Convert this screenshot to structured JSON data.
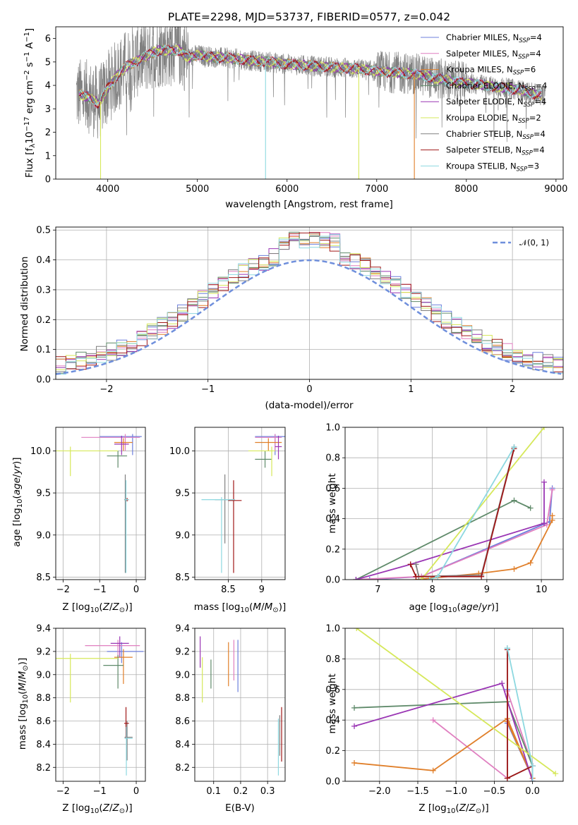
{
  "title": "PLATE=2298, MJD=53737, FIBERID=0577, z=0.042",
  "colors": {
    "chabrier_miles": "#6c7fdc",
    "salpeter_miles": "#e07fc0",
    "kroupa_miles": "#e07f2a",
    "chabrier_elodie": "#5f8a6a",
    "salpeter_elodie": "#9a36b4",
    "kroupa_elodie": "#d6e85a",
    "chabrier_stelib": "#808080",
    "salpeter_stelib": "#a01818",
    "kroupa_stelib": "#8dd8e0",
    "normal": "#6f8fdc"
  },
  "legend_top": [
    {
      "key": "chabrier_miles",
      "name": "Chabrier MILES, ",
      "n": "4"
    },
    {
      "key": "salpeter_miles",
      "name": "Salpeter MILES, ",
      "n": "4"
    },
    {
      "key": "kroupa_miles",
      "name": "Kroupa MILES, ",
      "n": "6"
    },
    {
      "key": "chabrier_elodie",
      "name": "Chabrier ELODIE, ",
      "n": "4"
    },
    {
      "key": "salpeter_elodie",
      "name": "Salpeter ELODIE, ",
      "n": "4"
    },
    {
      "key": "kroupa_elodie",
      "name": "Kroupa ELODIE, ",
      "n": "2"
    },
    {
      "key": "chabrier_stelib",
      "name": "Chabrier STELIB, ",
      "n": "4"
    },
    {
      "key": "salpeter_stelib",
      "name": "Salpeter STELIB, ",
      "n": "4"
    },
    {
      "key": "kroupa_stelib",
      "name": "Kroupa STELIB, ",
      "n": "3"
    }
  ],
  "chart_data": [
    {
      "id": "spectrum",
      "type": "line",
      "title": "PLATE=2298, MJD=53737, FIBERID=0577, z=0.042",
      "xlabel": "wavelength [Angstrom, rest frame]",
      "ylabel": "Flux [f_λ 10^-17 erg cm^-2 s^-1 A^-1]",
      "xlim": [
        3420,
        9080
      ],
      "ylim": [
        0,
        6.5
      ],
      "xticks": [
        4000,
        5000,
        6000,
        7000,
        8000,
        9000
      ],
      "yticks": [
        0,
        1,
        2,
        3,
        4,
        5,
        6
      ],
      "continuum": {
        "x": [
          3680,
          3800,
          3900,
          4000,
          4100,
          4200,
          4300,
          4400,
          4500,
          4600,
          4700,
          4800,
          4900,
          5000,
          5200,
          5400,
          5600,
          5800,
          6000,
          6200,
          6400,
          6600,
          6800,
          7000,
          7200,
          7400,
          7600,
          7800,
          8000,
          8200,
          8400,
          8600,
          8800
        ],
        "y": [
          3.6,
          3.5,
          3.2,
          3.9,
          4.4,
          4.8,
          5.0,
          5.2,
          5.4,
          5.5,
          5.5,
          5.5,
          5.2,
          5.3,
          5.2,
          5.15,
          5.05,
          5.0,
          4.9,
          4.85,
          4.8,
          4.75,
          4.7,
          4.6,
          4.55,
          4.5,
          4.35,
          4.2,
          4.1,
          4.0,
          3.9,
          3.8,
          3.6
        ]
      },
      "data_range": [
        3650,
        8880
      ]
    },
    {
      "id": "residuals",
      "type": "line",
      "xlabel": "(data-model)/error",
      "ylabel": "Normed distribution",
      "xlim": [
        -2.5,
        2.5
      ],
      "ylim": [
        0,
        0.51
      ],
      "xticks": [
        -2,
        -1,
        0,
        1,
        2
      ],
      "yticks": [
        0,
        0.1,
        0.2,
        0.3,
        0.4,
        0.5
      ],
      "normal_label": "𝒩(0, 1)",
      "bin_width": 0.1,
      "bin_start": -2.5
    },
    {
      "id": "age_vs_Z",
      "type": "scatter",
      "xlabel": "Z [log10(Z/Z⊙)]",
      "ylabel": "age  [log10(age/yr)]",
      "xlim": [
        -2.2,
        0.25
      ],
      "ylim": [
        8.47,
        10.28
      ],
      "xticks": [
        -2,
        -1,
        0
      ],
      "yticks": [
        8.5,
        9.0,
        9.5,
        10.0
      ],
      "points": [
        {
          "key": "chabrier_miles",
          "x": -0.1,
          "y": 10.17,
          "xe": [
            -1.0,
            0.15
          ],
          "ye": [
            9.95,
            10.2
          ]
        },
        {
          "key": "salpeter_miles",
          "x": -0.3,
          "y": 10.16,
          "xe": [
            -1.5,
            0.1
          ],
          "ye": [
            10.0,
            10.2
          ]
        },
        {
          "key": "kroupa_miles",
          "x": -0.35,
          "y": 10.1,
          "xe": [
            -0.6,
            -0.1
          ],
          "ye": [
            10.0,
            10.15
          ]
        },
        {
          "key": "chabrier_elodie",
          "x": -0.5,
          "y": 9.94,
          "xe": [
            -0.8,
            -0.25
          ],
          "ye": [
            9.8,
            10.0
          ]
        },
        {
          "key": "salpeter_elodie",
          "x": -0.4,
          "y": 10.08,
          "xe": [
            -0.6,
            -0.2
          ],
          "ye": [
            9.95,
            10.18
          ]
        },
        {
          "key": "kroupa_elodie",
          "x": -1.8,
          "y": 10.0,
          "xe": [
            -2.2,
            -0.5
          ],
          "ye": [
            9.7,
            10.05
          ]
        },
        {
          "key": "chabrier_stelib",
          "x": -0.3,
          "y": 9.42,
          "xe": [
            -0.33,
            -0.25
          ],
          "ye": [
            8.55,
            9.72
          ]
        },
        {
          "key": "salpeter_stelib",
          "x": -0.25,
          "y": 9.42,
          "xe": [
            -0.3,
            -0.2
          ],
          "ye": [
            9.4,
            9.44
          ]
        },
        {
          "key": "kroupa_stelib",
          "x": -0.28,
          "y": 9.42,
          "xe": [
            -0.32,
            -0.2
          ],
          "ye": [
            8.55,
            9.65
          ]
        }
      ]
    },
    {
      "id": "age_vs_mass",
      "type": "scatter",
      "xlabel": "mass [log10(M/M⊙)]",
      "ylabel": "",
      "xlim": [
        8.0,
        9.35
      ],
      "ylim": [
        8.47,
        10.28
      ],
      "xticks": [
        8.5,
        9.0
      ],
      "yticks": [
        8.5,
        9.0,
        9.5,
        10.0
      ],
      "points": [
        {
          "key": "chabrier_miles",
          "x": 9.2,
          "y": 10.17,
          "xe": [
            8.9,
            9.35
          ],
          "ye": [
            9.95,
            10.2
          ]
        },
        {
          "key": "salpeter_miles",
          "x": 9.2,
          "y": 10.16,
          "xe": [
            8.9,
            9.3
          ],
          "ye": [
            10.0,
            10.2
          ]
        },
        {
          "key": "kroupa_miles",
          "x": 9.1,
          "y": 10.1,
          "xe": [
            8.9,
            9.3
          ],
          "ye": [
            10.0,
            10.15
          ]
        },
        {
          "key": "chabrier_elodie",
          "x": 9.05,
          "y": 9.9,
          "xe": [
            8.9,
            9.15
          ],
          "ye": [
            9.8,
            10.0
          ]
        },
        {
          "key": "salpeter_elodie",
          "x": 9.25,
          "y": 10.05,
          "xe": [
            9.2,
            9.3
          ],
          "ye": [
            9.9,
            10.18
          ]
        },
        {
          "key": "kroupa_elodie",
          "x": 9.15,
          "y": 10.0,
          "xe": [
            8.8,
            9.2
          ],
          "ye": [
            9.7,
            10.05
          ]
        },
        {
          "key": "chabrier_stelib",
          "x": 8.45,
          "y": 9.42,
          "xe": [
            8.3,
            8.6
          ],
          "ye": [
            8.9,
            9.72
          ]
        },
        {
          "key": "salpeter_stelib",
          "x": 8.58,
          "y": 9.41,
          "xe": [
            8.5,
            8.7
          ],
          "ye": [
            8.55,
            9.65
          ]
        },
        {
          "key": "kroupa_stelib",
          "x": 8.4,
          "y": 9.42,
          "xe": [
            8.1,
            8.6
          ],
          "ye": [
            8.55,
            9.45
          ]
        }
      ]
    },
    {
      "id": "weight_vs_age",
      "type": "line",
      "xlabel": "age  [log10(age/yr)]",
      "ylabel": "mass weight",
      "xlim": [
        6.4,
        10.4
      ],
      "ylim": [
        0,
        1.0
      ],
      "xticks": [
        7,
        8,
        9,
        10
      ],
      "yticks": [
        0,
        0.2,
        0.4,
        0.6,
        0.8,
        1.0
      ],
      "series": [
        {
          "key": "chabrier_miles",
          "x": [
            6.85,
            7.8,
            10.15,
            10.2
          ],
          "y": [
            0.0,
            0.02,
            0.38,
            0.6
          ]
        },
        {
          "key": "salpeter_miles",
          "x": [
            6.6,
            7.8,
            10.1,
            10.2
          ],
          "y": [
            0.0,
            0.02,
            0.36,
            0.59
          ]
        },
        {
          "key": "kroupa_miles",
          "x": [
            7.7,
            8.85,
            9.5,
            9.8,
            10.2,
            10.2
          ],
          "y": [
            0.0,
            0.04,
            0.07,
            0.11,
            0.39,
            0.42
          ]
        },
        {
          "key": "chabrier_elodie",
          "x": [
            6.6,
            9.5,
            9.8
          ],
          "y": [
            0.0,
            0.52,
            0.47
          ]
        },
        {
          "key": "salpeter_elodie",
          "x": [
            6.6,
            7.6,
            10.05,
            10.05
          ],
          "y": [
            0.0,
            0.1,
            0.37,
            0.64
          ]
        },
        {
          "key": "kroupa_elodie",
          "x": [
            7.8,
            10.05
          ],
          "y": [
            0.0,
            1.0
          ]
        },
        {
          "key": "chabrier_stelib",
          "x": [
            7.7,
            7.75,
            8.9,
            9.5
          ],
          "y": [
            0.1,
            0.02,
            0.03,
            0.87
          ]
        },
        {
          "key": "salpeter_stelib",
          "x": [
            7.6,
            7.7,
            8.9,
            9.5
          ],
          "y": [
            0.1,
            0.02,
            0.02,
            0.86
          ]
        },
        {
          "key": "kroupa_stelib",
          "x": [
            7.95,
            8.1,
            9.5
          ],
          "y": [
            0.0,
            0.02,
            0.87
          ]
        }
      ]
    },
    {
      "id": "mass_vs_Z",
      "type": "scatter",
      "xlabel": "Z [log10(Z/Z⊙)]",
      "ylabel": "mass [log10(M/M⊙)]",
      "xlim": [
        -2.2,
        0.25
      ],
      "ylim": [
        8.08,
        9.4
      ],
      "xticks": [
        -2,
        -1,
        0
      ],
      "yticks": [
        8.2,
        8.4,
        8.6,
        8.8,
        9.0,
        9.2,
        9.4
      ],
      "points": [
        {
          "key": "chabrier_miles",
          "x": -0.4,
          "y": 9.2,
          "xe": [
            -0.8,
            0.2
          ],
          "ye": [
            9.1,
            9.28
          ]
        },
        {
          "key": "salpeter_miles",
          "x": -0.5,
          "y": 9.25,
          "xe": [
            -1.4,
            0.1
          ],
          "ye": [
            9.15,
            9.3
          ]
        },
        {
          "key": "kroupa_miles",
          "x": -0.35,
          "y": 9.15,
          "xe": [
            -0.6,
            -0.1
          ],
          "ye": [
            8.92,
            9.22
          ]
        },
        {
          "key": "chabrier_elodie",
          "x": -0.5,
          "y": 9.08,
          "xe": [
            -0.9,
            -0.35
          ],
          "ye": [
            8.88,
            9.17
          ]
        },
        {
          "key": "salpeter_elodie",
          "x": -0.45,
          "y": 9.27,
          "xe": [
            -0.7,
            -0.2
          ],
          "ye": [
            9.15,
            9.33
          ]
        },
        {
          "key": "kroupa_elodie",
          "x": -1.8,
          "y": 9.14,
          "xe": [
            -2.2,
            -0.5
          ],
          "ye": [
            8.76,
            9.18
          ]
        },
        {
          "key": "chabrier_stelib",
          "x": -0.25,
          "y": 8.46,
          "xe": [
            -0.32,
            -0.1
          ],
          "ye": [
            8.26,
            8.6
          ]
        },
        {
          "key": "salpeter_stelib",
          "x": -0.28,
          "y": 8.58,
          "xe": [
            -0.33,
            -0.2
          ],
          "ye": [
            8.45,
            8.72
          ]
        },
        {
          "key": "kroupa_stelib",
          "x": -0.27,
          "y": 8.45,
          "xe": [
            -0.32,
            -0.1
          ],
          "ye": [
            8.13,
            8.55
          ]
        }
      ]
    },
    {
      "id": "mass_vs_ebv",
      "type": "scatter",
      "xlabel": "E(B-V)",
      "ylabel": "",
      "xlim": [
        0.03,
        0.365
      ],
      "ylim": [
        8.08,
        9.4
      ],
      "xticks": [
        0.1,
        0.2,
        0.3
      ],
      "yticks": [
        8.2,
        8.4,
        8.6,
        8.8,
        9.0,
        9.2,
        9.4
      ],
      "points": [
        {
          "key": "chabrier_miles",
          "x": 0.19,
          "y": 9.07,
          "ye": [
            8.85,
            9.3
          ]
        },
        {
          "key": "salpeter_miles",
          "x": 0.175,
          "y": 9.1,
          "ye": [
            8.95,
            9.3
          ]
        },
        {
          "key": "kroupa_miles",
          "x": 0.155,
          "y": 9.08,
          "ye": [
            8.9,
            9.28
          ]
        },
        {
          "key": "chabrier_elodie",
          "x": 0.09,
          "y": 9.0,
          "ye": [
            8.88,
            9.13
          ]
        },
        {
          "key": "salpeter_elodie",
          "x": 0.05,
          "y": 9.2,
          "ye": [
            9.06,
            9.33
          ]
        },
        {
          "key": "kroupa_elodie",
          "x": 0.058,
          "y": 8.95,
          "ye": [
            8.76,
            9.15
          ]
        },
        {
          "key": "chabrier_stelib",
          "x": 0.345,
          "y": 8.5,
          "ye": [
            8.3,
            8.65
          ]
        },
        {
          "key": "salpeter_stelib",
          "x": 0.352,
          "y": 8.48,
          "ye": [
            8.25,
            8.72
          ]
        },
        {
          "key": "kroupa_stelib",
          "x": 0.34,
          "y": 8.4,
          "ye": [
            8.13,
            8.62
          ]
        }
      ]
    },
    {
      "id": "weight_vs_Z",
      "type": "line",
      "xlabel": "Z [log10(Z/Z⊙)]",
      "ylabel": "mass weight",
      "xlim": [
        -2.45,
        0.4
      ],
      "ylim": [
        0,
        1.0
      ],
      "xticks": [
        -2.0,
        -1.5,
        -1.0,
        -0.5,
        0.0
      ],
      "yticks": [
        0,
        0.2,
        0.4,
        0.6,
        0.8,
        1.0
      ],
      "series": [
        {
          "key": "chabrier_miles",
          "x": [
            -0.33,
            -0.33,
            0.0,
            0.0
          ],
          "y": [
            0.6,
            0.38,
            0.02,
            0.0
          ]
        },
        {
          "key": "salpeter_miles",
          "x": [
            -1.3,
            -0.33,
            -0.33,
            0.0
          ],
          "y": [
            0.4,
            0.02,
            0.59,
            0.1
          ]
        },
        {
          "key": "kroupa_miles",
          "x": [
            -2.33,
            -1.3,
            -0.33,
            0.0,
            -0.33
          ],
          "y": [
            0.12,
            0.07,
            0.41,
            0.02,
            0.39
          ]
        },
        {
          "key": "chabrier_elodie",
          "x": [
            -2.33,
            -0.33,
            0.0
          ],
          "y": [
            0.48,
            0.52,
            0.1
          ]
        },
        {
          "key": "salpeter_elodie",
          "x": [
            -2.33,
            -0.4,
            0.0
          ],
          "y": [
            0.36,
            0.64,
            0.0
          ]
        },
        {
          "key": "kroupa_elodie",
          "x": [
            -2.3,
            0.3
          ],
          "y": [
            1.0,
            0.05
          ]
        },
        {
          "key": "chabrier_stelib",
          "x": [
            -0.33,
            -0.33,
            0.0
          ],
          "y": [
            0.87,
            0.02,
            0.1
          ]
        },
        {
          "key": "salpeter_stelib",
          "x": [
            -0.33,
            -0.33,
            0.0,
            0.0
          ],
          "y": [
            0.86,
            0.02,
            0.1,
            0.0
          ]
        },
        {
          "key": "kroupa_stelib",
          "x": [
            -0.33,
            0.0,
            0.0
          ],
          "y": [
            0.87,
            0.1,
            0.0
          ]
        }
      ]
    }
  ]
}
